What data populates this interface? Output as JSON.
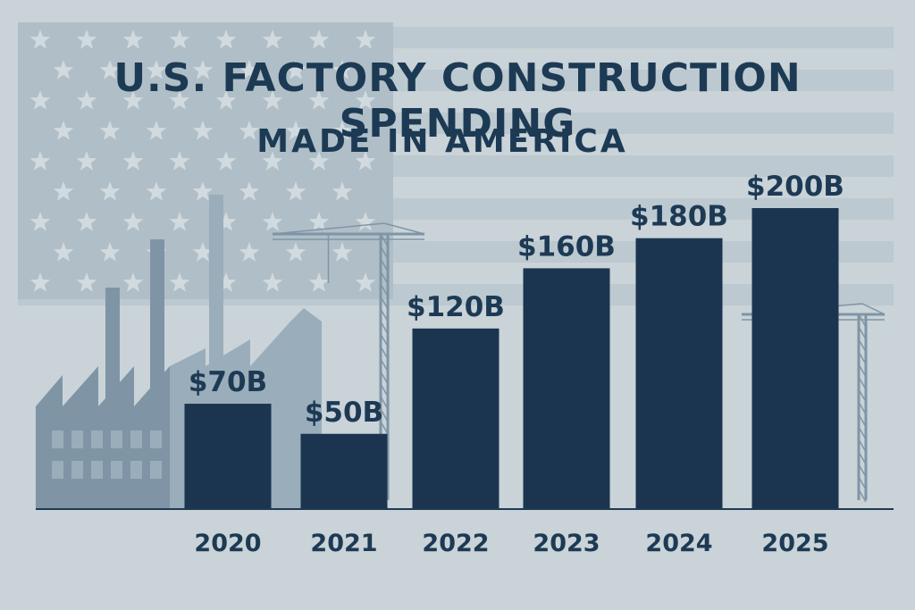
{
  "colors": {
    "background": "#c9d3d8",
    "bar": "#1b3550",
    "text": "#1d3a54",
    "backdrop_dark": "#7f95a6",
    "backdrop_mid": "#9aadba",
    "stripe": "#b3c1ca"
  },
  "decorations": [
    "american-flag",
    "factory-silhouette",
    "construction-crane"
  ],
  "chart_data": {
    "type": "bar",
    "title": "U.S. FACTORY CONSTRUCTION SPENDING",
    "subtitle": "MADE IN AMERICA",
    "categories": [
      "2020",
      "2021",
      "2022",
      "2023",
      "2024",
      "2025"
    ],
    "values": [
      70,
      50,
      120,
      160,
      180,
      200
    ],
    "value_labels": [
      "$70B",
      "$50B",
      "$120B",
      "$160B",
      "$180B",
      "$200B"
    ],
    "xlabel": "",
    "ylabel": "",
    "grid": false,
    "legend": "none"
  }
}
